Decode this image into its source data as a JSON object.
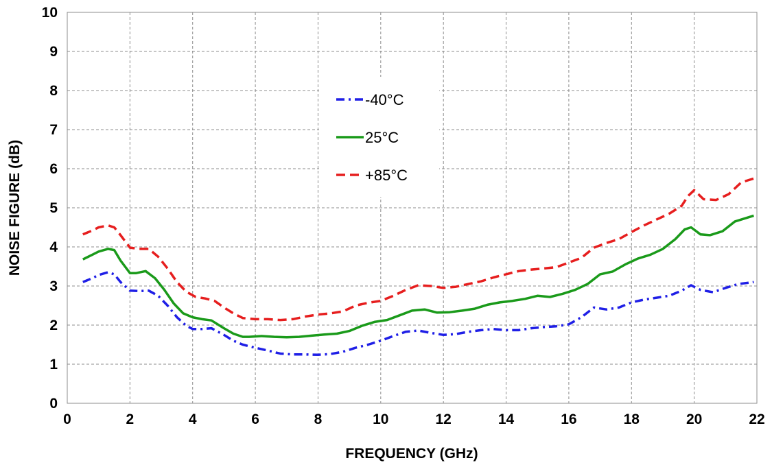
{
  "chart_data": {
    "type": "line",
    "title": "",
    "xlabel": "FREQUENCY (GHz)",
    "ylabel": "NOISE FIGURE (dB)",
    "xlim": [
      0,
      22
    ],
    "ylim": [
      0,
      10
    ],
    "x_ticks": [
      0,
      2,
      4,
      6,
      8,
      10,
      12,
      14,
      16,
      18,
      20,
      22
    ],
    "y_ticks": [
      0,
      1,
      2,
      3,
      4,
      5,
      6,
      7,
      8,
      9,
      10
    ],
    "grid": true,
    "legend_position": "top-center",
    "series": [
      {
        "name": "-40°C",
        "color": "#1f1fe6",
        "line_style": "dash-dot",
        "x": [
          0.5,
          0.8,
          1.0,
          1.3,
          1.5,
          1.7,
          2.0,
          2.3,
          2.6,
          2.9,
          3.2,
          3.5,
          3.8,
          4.0,
          4.3,
          4.6,
          5.0,
          5.3,
          5.6,
          6.0,
          6.4,
          6.8,
          7.2,
          7.6,
          8.0,
          8.4,
          8.8,
          9.2,
          9.6,
          10.0,
          10.4,
          10.8,
          11.2,
          11.6,
          12.0,
          12.4,
          12.8,
          13.2,
          13.6,
          14.0,
          14.4,
          14.8,
          15.2,
          15.6,
          16.0,
          16.4,
          16.8,
          17.2,
          17.6,
          18.0,
          18.4,
          18.8,
          19.2,
          19.6,
          19.9,
          20.2,
          20.6,
          21.0,
          21.4,
          21.9
        ],
        "values": [
          3.1,
          3.2,
          3.28,
          3.35,
          3.3,
          3.1,
          2.88,
          2.87,
          2.88,
          2.75,
          2.5,
          2.2,
          1.98,
          1.9,
          1.9,
          1.92,
          1.75,
          1.6,
          1.5,
          1.42,
          1.35,
          1.27,
          1.25,
          1.25,
          1.24,
          1.26,
          1.32,
          1.42,
          1.5,
          1.6,
          1.72,
          1.83,
          1.86,
          1.8,
          1.75,
          1.77,
          1.83,
          1.87,
          1.9,
          1.87,
          1.87,
          1.92,
          1.95,
          1.97,
          2.02,
          2.2,
          2.45,
          2.4,
          2.45,
          2.58,
          2.65,
          2.7,
          2.75,
          2.88,
          3.02,
          2.9,
          2.84,
          2.95,
          3.05,
          3.1
        ]
      },
      {
        "name": "25°C",
        "color": "#1a9a1a",
        "line_style": "solid",
        "x": [
          0.5,
          0.8,
          1.0,
          1.3,
          1.5,
          1.7,
          2.0,
          2.2,
          2.5,
          2.8,
          3.1,
          3.4,
          3.7,
          4.0,
          4.3,
          4.6,
          5.0,
          5.3,
          5.6,
          5.8,
          6.2,
          6.6,
          7.0,
          7.4,
          7.8,
          8.2,
          8.6,
          9.0,
          9.4,
          9.8,
          10.2,
          10.6,
          11.0,
          11.4,
          11.8,
          12.2,
          12.6,
          13.0,
          13.4,
          13.8,
          14.2,
          14.6,
          15.0,
          15.4,
          15.8,
          16.2,
          16.6,
          17.0,
          17.4,
          17.8,
          18.2,
          18.6,
          19.0,
          19.4,
          19.7,
          19.9,
          20.2,
          20.5,
          20.9,
          21.3,
          21.9
        ],
        "values": [
          3.68,
          3.8,
          3.88,
          3.95,
          3.92,
          3.65,
          3.33,
          3.33,
          3.38,
          3.2,
          2.9,
          2.55,
          2.3,
          2.2,
          2.15,
          2.12,
          1.92,
          1.78,
          1.7,
          1.7,
          1.72,
          1.7,
          1.69,
          1.7,
          1.73,
          1.76,
          1.78,
          1.85,
          1.98,
          2.08,
          2.13,
          2.25,
          2.37,
          2.4,
          2.32,
          2.33,
          2.37,
          2.42,
          2.52,
          2.58,
          2.62,
          2.67,
          2.75,
          2.72,
          2.8,
          2.9,
          3.05,
          3.3,
          3.37,
          3.55,
          3.7,
          3.8,
          3.95,
          4.2,
          4.45,
          4.5,
          4.32,
          4.3,
          4.4,
          4.65,
          4.8
        ]
      },
      {
        "name": "+85°C",
        "color": "#e61e1e",
        "line_style": "dashed",
        "x": [
          0.5,
          0.8,
          1.0,
          1.3,
          1.5,
          1.7,
          2.0,
          2.3,
          2.6,
          2.9,
          3.2,
          3.5,
          3.8,
          4.1,
          4.4,
          4.7,
          5.0,
          5.3,
          5.6,
          6.0,
          6.4,
          6.8,
          7.2,
          7.6,
          8.0,
          8.4,
          8.8,
          9.2,
          9.6,
          10.0,
          10.4,
          10.8,
          11.2,
          11.6,
          12.0,
          12.4,
          12.8,
          13.2,
          13.6,
          14.0,
          14.4,
          14.8,
          15.2,
          15.6,
          16.0,
          16.4,
          16.8,
          17.2,
          17.6,
          18.0,
          18.4,
          18.8,
          19.2,
          19.6,
          19.8,
          20.0,
          20.3,
          20.7,
          21.1,
          21.5,
          21.9
        ],
        "values": [
          4.32,
          4.42,
          4.5,
          4.55,
          4.5,
          4.3,
          3.98,
          3.95,
          3.95,
          3.75,
          3.45,
          3.1,
          2.85,
          2.72,
          2.68,
          2.62,
          2.45,
          2.3,
          2.18,
          2.15,
          2.15,
          2.13,
          2.15,
          2.22,
          2.27,
          2.3,
          2.35,
          2.5,
          2.57,
          2.62,
          2.75,
          2.9,
          3.02,
          3.0,
          2.95,
          2.98,
          3.05,
          3.12,
          3.22,
          3.3,
          3.38,
          3.42,
          3.45,
          3.48,
          3.6,
          3.72,
          3.98,
          4.1,
          4.2,
          4.38,
          4.55,
          4.7,
          4.85,
          5.05,
          5.3,
          5.45,
          5.22,
          5.2,
          5.35,
          5.65,
          5.75
        ]
      }
    ]
  }
}
